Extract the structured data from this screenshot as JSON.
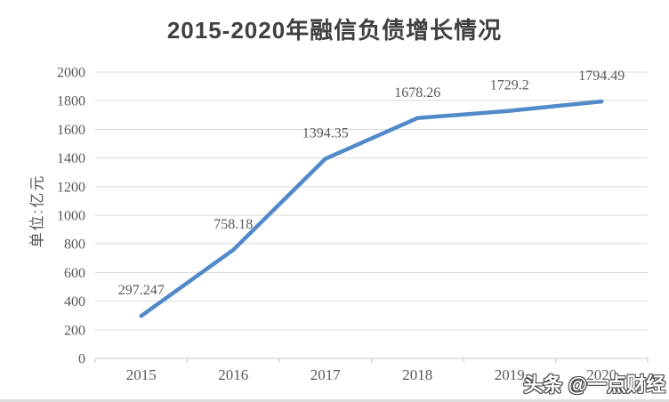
{
  "chart_data": {
    "type": "line",
    "title": "2015-2020年融信负债增长情况",
    "ylabel": "单位:亿元",
    "xlabel": "",
    "categories": [
      "2015",
      "2016",
      "2017",
      "2018",
      "2019",
      "2020"
    ],
    "values": [
      297.247,
      758.18,
      1394.35,
      1678.26,
      1729.2,
      1794.49
    ],
    "value_labels": [
      "297.247",
      "758.18",
      "1394.35",
      "1678.26",
      "1729.2",
      "1794.49"
    ],
    "ylim": [
      0,
      2000
    ],
    "ytick_step": 200,
    "grid": true,
    "legend": "none",
    "line_color": "#518AC9",
    "grid_color": "#D9D9D9",
    "axis_color": "#C9C9C9",
    "tick_label_color": "#595959",
    "data_label_color": "#595959",
    "title_color": "#3F3F3F"
  },
  "watermark": {
    "text": "头条 @一点财经"
  }
}
